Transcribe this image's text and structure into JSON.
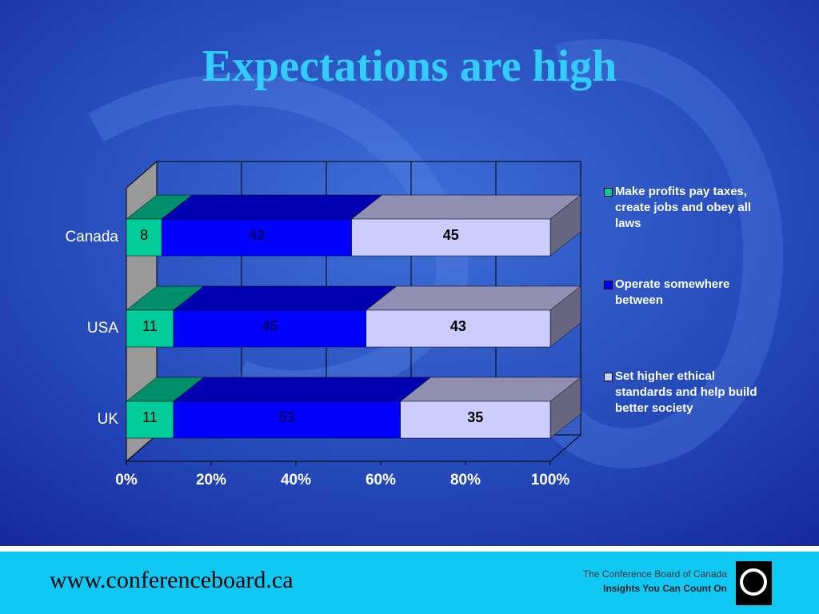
{
  "chart_data": {
    "type": "bar",
    "orientation": "horizontal",
    "stacking": "percent",
    "three_d": true,
    "title": "Expectations are high",
    "categories": [
      "Canada",
      "USA",
      "UK"
    ],
    "series": [
      {
        "name": "Make profits pay taxes, create jobs and obey all laws",
        "color": "#00cc99",
        "values": [
          8,
          11,
          11
        ]
      },
      {
        "name": "Operate somewhere between",
        "color": "#0000ff",
        "values": [
          43,
          45,
          53
        ]
      },
      {
        "name": "Set higher ethical standards and help build better society",
        "color": "#ccccff",
        "values": [
          45,
          43,
          35
        ]
      }
    ],
    "xlim": [
      0,
      100
    ],
    "xticks": [
      {
        "value": 0,
        "label": "0%"
      },
      {
        "value": 20,
        "label": "20%"
      },
      {
        "value": 40,
        "label": "40%"
      },
      {
        "value": 60,
        "label": "60%"
      },
      {
        "value": 80,
        "label": "80%"
      },
      {
        "value": 100,
        "label": "100%"
      }
    ],
    "grid": true,
    "legend": "right"
  },
  "footer": {
    "url": "www.conferenceboard.ca",
    "org": "The Conference Board of Canada",
    "tagline": "Insights You Can Count On"
  }
}
